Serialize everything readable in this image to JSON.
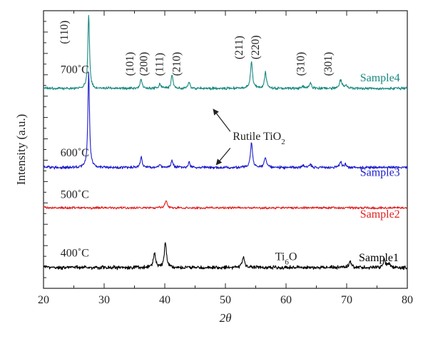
{
  "chart_data": {
    "type": "line",
    "title": "",
    "xlabel": "2θ",
    "ylabel": "Intensity (a.u.)",
    "xlim": [
      20,
      80
    ],
    "x_ticks": [
      "20",
      "30",
      "40",
      "50",
      "60",
      "70",
      "80"
    ],
    "ylim": [
      0,
      1
    ],
    "y_ticks_labeled": false,
    "grid": false,
    "legend": "none",
    "series": [
      {
        "name": "Sample1",
        "temperature": "400˚C",
        "color": "#000000",
        "baseline": 0.075,
        "noise": 0.008,
        "peaks": [
          {
            "x": 38.3,
            "h": 0.052,
            "w": 0.22
          },
          {
            "x": 40.1,
            "h": 0.095,
            "w": 0.2
          },
          {
            "x": 53.0,
            "h": 0.036,
            "w": 0.25
          },
          {
            "x": 70.6,
            "h": 0.022,
            "w": 0.25
          },
          {
            "x": 76.2,
            "h": 0.028,
            "w": 0.25
          },
          {
            "x": 77.0,
            "h": 0.012,
            "w": 0.2
          }
        ]
      },
      {
        "name": "Sample2",
        "temperature": "500˚C",
        "color": "#e02020",
        "baseline": 0.29,
        "noise": 0.005,
        "peaks": [
          {
            "x": 40.2,
            "h": 0.025,
            "w": 0.22
          }
        ]
      },
      {
        "name": "Sample3",
        "temperature": "600˚C",
        "color": "#1c1ccc",
        "baseline": 0.435,
        "noise": 0.006,
        "peaks": [
          {
            "x": 27.45,
            "h": 0.345,
            "w": 0.16
          },
          {
            "x": 36.1,
            "h": 0.04,
            "w": 0.18
          },
          {
            "x": 39.2,
            "h": 0.012,
            "w": 0.18
          },
          {
            "x": 41.2,
            "h": 0.025,
            "w": 0.18
          },
          {
            "x": 44.0,
            "h": 0.02,
            "w": 0.18
          },
          {
            "x": 54.3,
            "h": 0.09,
            "w": 0.2
          },
          {
            "x": 56.6,
            "h": 0.038,
            "w": 0.2
          },
          {
            "x": 62.8,
            "h": 0.008,
            "w": 0.2
          },
          {
            "x": 64.0,
            "h": 0.012,
            "w": 0.2
          },
          {
            "x": 69.0,
            "h": 0.018,
            "w": 0.25
          },
          {
            "x": 69.8,
            "h": 0.01,
            "w": 0.2
          }
        ]
      },
      {
        "name": "Sample4",
        "temperature": "700˚C",
        "color": "#1a8a80",
        "baseline": 0.72,
        "noise": 0.006,
        "peaks": [
          {
            "x": 27.45,
            "h": 0.27,
            "w": 0.16
          },
          {
            "x": 36.1,
            "h": 0.035,
            "w": 0.18
          },
          {
            "x": 39.2,
            "h": 0.015,
            "w": 0.18
          },
          {
            "x": 41.2,
            "h": 0.052,
            "w": 0.18
          },
          {
            "x": 44.0,
            "h": 0.025,
            "w": 0.18
          },
          {
            "x": 54.3,
            "h": 0.098,
            "w": 0.2
          },
          {
            "x": 56.6,
            "h": 0.058,
            "w": 0.2
          },
          {
            "x": 62.8,
            "h": 0.008,
            "w": 0.2
          },
          {
            "x": 64.0,
            "h": 0.02,
            "w": 0.2
          },
          {
            "x": 69.0,
            "h": 0.03,
            "w": 0.25
          },
          {
            "x": 69.8,
            "h": 0.012,
            "w": 0.2
          }
        ]
      }
    ],
    "peak_labels": [
      {
        "text": "(110)",
        "x": 24.0
      },
      {
        "text": "(101)",
        "x": 34.8
      },
      {
        "text": "(200)",
        "x": 37.1
      },
      {
        "text": "(111)",
        "x": 39.7
      },
      {
        "text": "(210)",
        "x": 42.5
      },
      {
        "text": "(211)",
        "x": 52.8
      },
      {
        "text": "(220)",
        "x": 55.5
      },
      {
        "text": "(310)",
        "x": 63.0
      },
      {
        "text": "(301)",
        "x": 67.5
      }
    ],
    "annotations": {
      "rutile": {
        "main": "Rutile TiO",
        "sub": "2"
      },
      "ti6o": {
        "main": "Ti",
        "sub": "6",
        "tail": "O"
      }
    }
  }
}
